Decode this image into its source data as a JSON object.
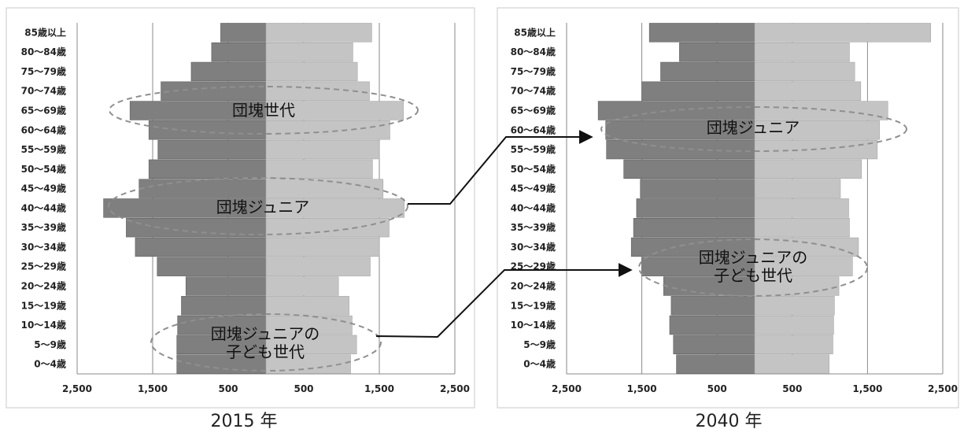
{
  "chart_data": [
    {
      "type": "bar",
      "title": "2015 年",
      "categories": [
        "85歳以上",
        "80～84歳",
        "75～79歳",
        "70～74歳",
        "65～69歳",
        "60～64歳",
        "55～59歳",
        "50～54歳",
        "45～49歳",
        "40～44歳",
        "35～39歳",
        "30～34歳",
        "25～29歳",
        "20～24歳",
        "15～19歳",
        "10～14歳",
        "5～9歳",
        "0～4歳"
      ],
      "x_tick_labels": [
        "2,500",
        "1,500",
        "500",
        "500",
        "1,500",
        "2,500"
      ],
      "xlim": [
        -2500,
        2500
      ],
      "grid": true,
      "series": [
        {
          "values": [
            -600,
            -720,
            -990,
            -1390,
            -1800,
            -1550,
            -1430,
            -1550,
            -1680,
            -2150,
            -1850,
            -1730,
            -1440,
            -1060,
            -1120,
            -1170,
            -1180,
            -1180
          ]
        },
        {
          "values": [
            1400,
            1150,
            1210,
            1370,
            1820,
            1640,
            1500,
            1410,
            1550,
            1830,
            1630,
            1500,
            1380,
            960,
            1100,
            1140,
            1200,
            1120
          ]
        }
      ],
      "annotations": [
        "団塊世代",
        "団塊ジュニア",
        "団塊ジュニアの\n子ども世代"
      ]
    },
    {
      "type": "bar",
      "title": "2040 年",
      "categories": [
        "85歳以上",
        "80～84歳",
        "75～79歳",
        "70～74歳",
        "65～69歳",
        "60～64歳",
        "55～59歳",
        "50～54歳",
        "45～49歳",
        "40～44歳",
        "35～39歳",
        "30～34歳",
        "25～29歳",
        "20～24歳",
        "15～19歳",
        "10～14歳",
        "5～9歳",
        "0～4歳"
      ],
      "x_tick_labels": [
        "2,500",
        "1,500",
        "500",
        "500",
        "1,500",
        "2,500"
      ],
      "xlim": [
        -2500,
        2500
      ],
      "grid": true,
      "series": [
        {
          "values": [
            -1400,
            -1000,
            -1250,
            -1500,
            -2080,
            -1980,
            -1970,
            -1740,
            -1520,
            -1570,
            -1610,
            -1640,
            -1500,
            -1210,
            -1110,
            -1130,
            -1080,
            -1040
          ]
        },
        {
          "values": [
            2340,
            1260,
            1330,
            1410,
            1770,
            1660,
            1630,
            1420,
            1140,
            1250,
            1260,
            1380,
            1300,
            1120,
            1060,
            1050,
            1040,
            990
          ]
        }
      ],
      "annotations": [
        "団塊ジュニア",
        "団塊ジュニアの\n子ども世代"
      ]
    }
  ],
  "colors": {
    "left_bar": "#7f7f7f",
    "right_bar": "#c4c4c4",
    "left_bar_edge": "#5f5f5f",
    "right_bar_edge": "#a8a8a8"
  }
}
